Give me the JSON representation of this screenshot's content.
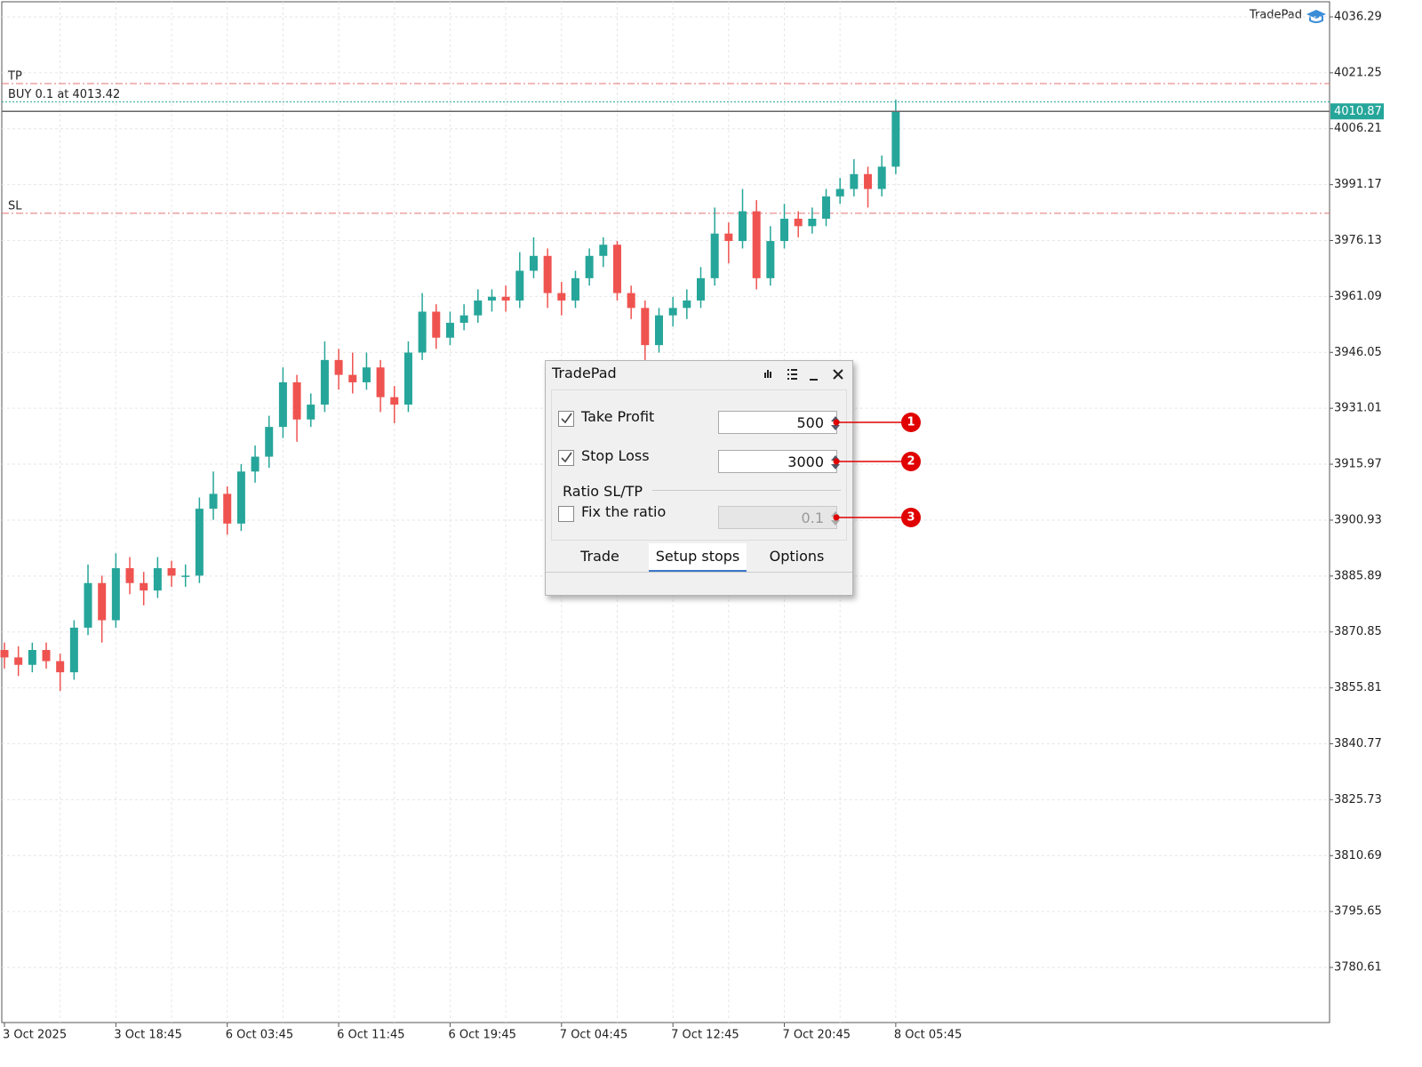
{
  "chart_data": {
    "type": "candlestick",
    "indicator_label": "TradePad",
    "categories": [
      "3 Oct 2025",
      null,
      null,
      null,
      null,
      null,
      null,
      null,
      "3 Oct 18:45",
      null,
      null,
      null,
      null,
      null,
      null,
      null,
      "6 Oct 03:45",
      null,
      null,
      null,
      null,
      null,
      null,
      null,
      "6 Oct 11:45",
      null,
      null,
      null,
      null,
      null,
      null,
      null,
      "6 Oct 19:45",
      null,
      null,
      null,
      null,
      null,
      null,
      null,
      "7 Oct 04:45",
      null,
      null,
      null,
      null,
      null,
      null,
      null,
      "7 Oct 12:45",
      null,
      null,
      null,
      null,
      null,
      null,
      null,
      "7 Oct 20:45",
      null,
      null,
      null,
      null,
      null,
      null,
      null,
      "8 Oct 05:45"
    ],
    "ohlc": [
      [
        3866,
        3868,
        3861,
        3864
      ],
      [
        3864,
        3867,
        3859,
        3862
      ],
      [
        3862,
        3868,
        3860,
        3866
      ],
      [
        3866,
        3868,
        3861,
        3863
      ],
      [
        3863,
        3865,
        3855,
        3860
      ],
      [
        3860,
        3874,
        3858,
        3872
      ],
      [
        3872,
        3889,
        3870,
        3884
      ],
      [
        3884,
        3886,
        3868,
        3874
      ],
      [
        3874,
        3892,
        3872,
        3888
      ],
      [
        3888,
        3891,
        3881,
        3884
      ],
      [
        3884,
        3887,
        3878,
        3882
      ],
      [
        3882,
        3891,
        3880,
        3888
      ],
      [
        3888,
        3890,
        3883,
        3886
      ],
      [
        3886,
        3889,
        3883,
        3886
      ],
      [
        3886,
        3907,
        3884,
        3904
      ],
      [
        3904,
        3914,
        3901,
        3908
      ],
      [
        3908,
        3910,
        3897,
        3900
      ],
      [
        3900,
        3916,
        3898,
        3914
      ],
      [
        3914,
        3921,
        3911,
        3918
      ],
      [
        3918,
        3929,
        3915,
        3926
      ],
      [
        3926,
        3942,
        3923,
        3938
      ],
      [
        3938,
        3940,
        3922,
        3928
      ],
      [
        3928,
        3935,
        3926,
        3932
      ],
      [
        3932,
        3949,
        3930,
        3944
      ],
      [
        3944,
        3947,
        3936,
        3940
      ],
      [
        3940,
        3946,
        3935,
        3938
      ],
      [
        3938,
        3946,
        3936,
        3942
      ],
      [
        3942,
        3944,
        3930,
        3934
      ],
      [
        3934,
        3937,
        3927,
        3932
      ],
      [
        3932,
        3949,
        3930,
        3946
      ],
      [
        3946,
        3962,
        3944,
        3957
      ],
      [
        3957,
        3959,
        3947,
        3950
      ],
      [
        3950,
        3957,
        3948,
        3954
      ],
      [
        3954,
        3959,
        3952,
        3956
      ],
      [
        3956,
        3963,
        3954,
        3960
      ],
      [
        3960,
        3963,
        3957,
        3961
      ],
      [
        3961,
        3964,
        3957,
        3960
      ],
      [
        3960,
        3973,
        3958,
        3968
      ],
      [
        3968,
        3977,
        3966,
        3972
      ],
      [
        3972,
        3974,
        3958,
        3962
      ],
      [
        3962,
        3965,
        3956,
        3960
      ],
      [
        3960,
        3968,
        3958,
        3966
      ],
      [
        3966,
        3974,
        3964,
        3972
      ],
      [
        3972,
        3977,
        3969,
        3975
      ],
      [
        3975,
        3976,
        3960,
        3962
      ],
      [
        3962,
        3964,
        3955,
        3958
      ],
      [
        3958,
        3960,
        3944,
        3948
      ],
      [
        3948,
        3958,
        3946,
        3956
      ],
      [
        3956,
        3961,
        3953,
        3958
      ],
      [
        3958,
        3963,
        3955,
        3960
      ],
      [
        3960,
        3969,
        3958,
        3966
      ],
      [
        3966,
        3985,
        3964,
        3978
      ],
      [
        3978,
        3981,
        3970,
        3976
      ],
      [
        3976,
        3990,
        3974,
        3984
      ],
      [
        3984,
        3987,
        3963,
        3966
      ],
      [
        3966,
        3980,
        3964,
        3976
      ],
      [
        3976,
        3986,
        3974,
        3982
      ],
      [
        3982,
        3984,
        3977,
        3980
      ],
      [
        3980,
        3985,
        3978,
        3982
      ],
      [
        3982,
        3990,
        3980,
        3988
      ],
      [
        3988,
        3993,
        3986,
        3990
      ],
      [
        3990,
        3998,
        3988,
        3994
      ],
      [
        3994,
        3996,
        3985,
        3990
      ],
      [
        3990,
        3999,
        3988,
        3996
      ],
      [
        3996,
        4014,
        3994,
        4010.87
      ]
    ],
    "up_color": "#26a69a",
    "down_color": "#ef5350",
    "ylim": [
      3765.79,
      4040.35
    ],
    "yticks": [
      4036.29,
      4021.25,
      4006.21,
      3991.17,
      3976.13,
      3961.09,
      3946.05,
      3931.01,
      3915.97,
      3900.93,
      3885.89,
      3870.85,
      3855.81,
      3840.77,
      3825.73,
      3810.69,
      3795.65,
      3780.61
    ],
    "grid": true,
    "levels": [
      {
        "name": "TP",
        "value": 4018.36,
        "color": "#e57373"
      },
      {
        "name": "BUY 0.1 at 4013.42",
        "value": 4013.42,
        "color": "#26a69a"
      },
      {
        "name": "SL",
        "value": 3983.45,
        "color": "#e57373"
      }
    ],
    "current_price": 4010.87
  },
  "dialog": {
    "title": "TradePad",
    "rows": [
      {
        "label": "Take Profit",
        "checked": true,
        "value": 500,
        "disabled": false
      },
      {
        "label": "Stop Loss",
        "checked": true,
        "value": 3000,
        "disabled": false
      },
      {
        "label": "Fix the ratio",
        "checked": false,
        "value": 0.1,
        "disabled": true
      }
    ],
    "group_label": "Ratio SL/TP",
    "tabs": [
      "Trade",
      "Setup stops",
      "Options"
    ],
    "active_tab": 1,
    "callouts": [
      "1",
      "2",
      "3"
    ]
  }
}
